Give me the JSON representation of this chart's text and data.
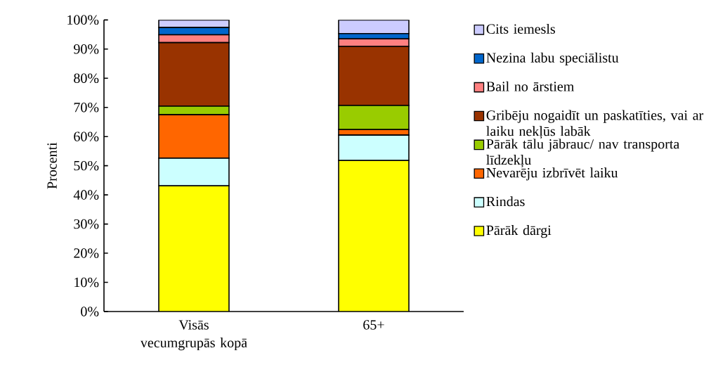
{
  "chart_data": {
    "type": "bar",
    "stacked": true,
    "ylabel": "Procenti",
    "categories": [
      "Visās vecumgrupās kopā",
      "65+"
    ],
    "series": [
      {
        "name": "Pārāk dārgi",
        "color": "#ffff00",
        "values": [
          43.1,
          51.8
        ]
      },
      {
        "name": "Rindas",
        "color": "#ccffff",
        "values": [
          9.5,
          8.7
        ]
      },
      {
        "name": "Nevarēju izbrīvēt laiku",
        "color": "#ff6600",
        "values": [
          14.9,
          1.9
        ]
      },
      {
        "name": "Pārāk tālu jābrauc/ nav transporta līdzekļu",
        "color": "#99cc00",
        "values": [
          2.9,
          8.3
        ]
      },
      {
        "name": "Gribēju nogaidīt un paskatīties, vai ar laiku nekļūs labāk",
        "color": "#993300",
        "values": [
          21.8,
          20.2
        ]
      },
      {
        "name": "Bail no ārstiem",
        "color": "#ff8080",
        "values": [
          2.7,
          2.6
        ]
      },
      {
        "name": "Nezina labu speciālistu",
        "color": "#0066cc",
        "values": [
          2.5,
          1.8
        ]
      },
      {
        "name": "Cits iemesls",
        "color": "#ccccff",
        "values": [
          2.6,
          4.7
        ]
      }
    ],
    "ylim": [
      0,
      100
    ],
    "yticks": [
      {
        "value": 0,
        "label": "0%"
      },
      {
        "value": 10,
        "label": "10%"
      },
      {
        "value": 20,
        "label": "20%"
      },
      {
        "value": 30,
        "label": "30%"
      },
      {
        "value": 40,
        "label": "40%"
      },
      {
        "value": 50,
        "label": "50%"
      },
      {
        "value": 60,
        "label": "60%"
      },
      {
        "value": 70,
        "label": "70%"
      },
      {
        "value": 80,
        "label": "80%"
      },
      {
        "value": 90,
        "label": "90%"
      },
      {
        "value": 100,
        "label": "100%"
      }
    ],
    "grid": false,
    "legend": "right"
  }
}
